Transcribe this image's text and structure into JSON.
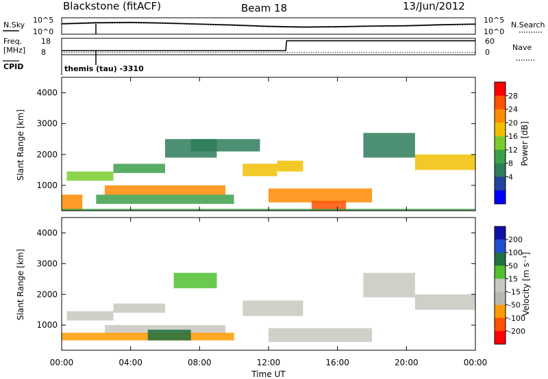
{
  "header": {
    "station": "Blackstone (fitACF)",
    "beam": "Beam 18",
    "date": "13/Jun/2012"
  },
  "control_panel": {
    "nsky_label": "N.Sky",
    "nsearch_label": "N.Search",
    "noise_ticks_left": [
      "10^5",
      "10^0"
    ],
    "noise_ticks_right": [
      "10^5",
      "10^0"
    ],
    "freq_label": "Freq.",
    "freq_unit": "[MHz]",
    "freq_ticks": [
      "18",
      "8"
    ],
    "nave_label": "Nave",
    "nave_ticks": [
      "60",
      "0"
    ],
    "cpid_label": "CPID",
    "cpid_value": "themis (tau) -3310"
  },
  "colors": {
    "power_scale": [
      "#0000ff",
      "#22449c",
      "#2e7d5a",
      "#3ca04a",
      "#7acc2e",
      "#f0c000",
      "#ff8a00",
      "#ff5000",
      "#ff0000"
    ],
    "velocity_scale": [
      "#1010a8",
      "#2050d0",
      "#207040",
      "#50c030",
      "#c8c8c0",
      "#b8b8b0",
      "#ff9a00",
      "#ff5000",
      "#ff0000"
    ]
  },
  "chart_data": [
    {
      "type": "line",
      "name": "noise",
      "x": [
        0,
        2,
        4,
        6,
        8,
        10,
        12,
        14,
        16,
        18,
        20,
        22,
        24
      ],
      "series": [
        {
          "name": "N.Sky",
          "values": [
            3.2,
            3.5,
            3.6,
            3.4,
            3.1,
            2.8,
            2.4,
            2.2,
            2.3,
            2.5,
            2.6,
            2.9,
            3.1
          ]
        },
        {
          "name": "N.Search",
          "values": [
            3.0,
            3.3,
            3.4,
            3.2,
            2.9,
            2.6,
            2.2,
            2.0,
            2.1,
            2.3,
            2.4,
            2.7,
            2.9
          ]
        }
      ]
    },
    {
      "type": "line",
      "name": "frequency-nave",
      "x": [
        0,
        0.05,
        13.0,
        13.05,
        24
      ],
      "series": [
        {
          "name": "Freq",
          "values": [
            10.5,
            10.5,
            10.5,
            16.5,
            16.5
          ]
        },
        {
          "name": "Nave",
          "values": [
            8,
            8,
            8,
            8,
            8
          ]
        }
      ]
    },
    {
      "type": "heatmap",
      "name": "power",
      "xlabel": "",
      "ylabel": "Slant Range [km]",
      "xlim": [
        0,
        24
      ],
      "ylim": [
        180,
        4500
      ],
      "yticks": [
        1000,
        2000,
        3000,
        4000
      ],
      "colorbar_label": "Power [dB]",
      "colorbar_ticks": [
        "28",
        "24",
        "20",
        "16",
        "12",
        "8",
        "4"
      ],
      "regions": [
        {
          "x0": 0.0,
          "x1": 1.2,
          "y0": 180,
          "y1": 700,
          "value": 22
        },
        {
          "x0": 0.3,
          "x1": 3.0,
          "y0": 1150,
          "y1": 1450,
          "value": 16
        },
        {
          "x0": 3.0,
          "x1": 6.0,
          "y0": 1400,
          "y1": 1700,
          "value": 14
        },
        {
          "x0": 6.0,
          "x1": 9.0,
          "y0": 1900,
          "y1": 2500,
          "value": 10
        },
        {
          "x0": 2.5,
          "x1": 9.5,
          "y0": 700,
          "y1": 1000,
          "value": 22
        },
        {
          "x0": 2.0,
          "x1": 10.0,
          "y0": 400,
          "y1": 700,
          "value": 12
        },
        {
          "x0": 7.5,
          "x1": 11.5,
          "y0": 2100,
          "y1": 2500,
          "value": 9
        },
        {
          "x0": 10.5,
          "x1": 12.5,
          "y0": 1300,
          "y1": 1700,
          "value": 18
        },
        {
          "x0": 12.5,
          "x1": 14.0,
          "y0": 1450,
          "y1": 1800,
          "value": 20
        },
        {
          "x0": 12.0,
          "x1": 18.0,
          "y0": 450,
          "y1": 900,
          "value": 24
        },
        {
          "x0": 14.5,
          "x1": 16.5,
          "y0": 180,
          "y1": 500,
          "value": 28
        },
        {
          "x0": 17.5,
          "x1": 20.5,
          "y0": 1900,
          "y1": 2700,
          "value": 10
        },
        {
          "x0": 20.5,
          "x1": 24.0,
          "y0": 1500,
          "y1": 2000,
          "value": 20
        },
        {
          "x0": 0.0,
          "x1": 24.0,
          "y0": 180,
          "y1": 240,
          "value": 14
        }
      ]
    },
    {
      "type": "heatmap",
      "name": "velocity",
      "xlabel": "Time UT",
      "ylabel": "Slant Range [km]",
      "xlim": [
        0,
        24
      ],
      "ylim": [
        180,
        4500
      ],
      "xticks": [
        "00:00",
        "04:00",
        "08:00",
        "12:00",
        "16:00",
        "20:00",
        "00:00"
      ],
      "yticks": [
        1000,
        2000,
        3000,
        4000
      ],
      "colorbar_label": "Velocity [m s⁻¹]",
      "colorbar_ticks": [
        "200",
        "100",
        "50",
        "15",
        "-15",
        "-50",
        "-100",
        "-200"
      ],
      "regions": [
        {
          "x0": 0.3,
          "x1": 3.0,
          "y0": 1150,
          "y1": 1450,
          "value": 0
        },
        {
          "x0": 3.0,
          "x1": 6.0,
          "y0": 1400,
          "y1": 1700,
          "value": 0
        },
        {
          "x0": 2.5,
          "x1": 9.5,
          "y0": 700,
          "y1": 1000,
          "value": 0
        },
        {
          "x0": 0.0,
          "x1": 10.0,
          "y0": 500,
          "y1": 750,
          "value": -50
        },
        {
          "x0": 5.0,
          "x1": 7.5,
          "y0": 500,
          "y1": 850,
          "value": 40
        },
        {
          "x0": 10.5,
          "x1": 14.0,
          "y0": 1300,
          "y1": 1800,
          "value": 0
        },
        {
          "x0": 12.0,
          "x1": 18.0,
          "y0": 450,
          "y1": 900,
          "value": 0
        },
        {
          "x0": 17.5,
          "x1": 20.5,
          "y0": 1900,
          "y1": 2700,
          "value": 0
        },
        {
          "x0": 20.5,
          "x1": 24.0,
          "y0": 1500,
          "y1": 2000,
          "value": 0
        },
        {
          "x0": 6.5,
          "x1": 9.0,
          "y0": 2200,
          "y1": 2700,
          "value": 25
        }
      ]
    }
  ]
}
